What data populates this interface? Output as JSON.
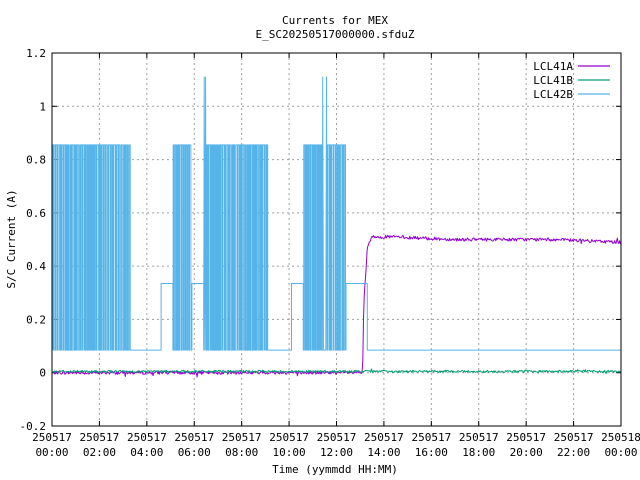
{
  "chart_data": {
    "type": "line",
    "title": "Currents for MEX",
    "subtitle": "E_SC20250517000000.sfduZ",
    "xlabel": "Time (yymmdd HH:MM)",
    "ylabel": "S/C Current (A)",
    "xlim": [
      "2025-05-17 00:00",
      "2025-05-18 00:00"
    ],
    "ylim": [
      -0.2,
      1.2
    ],
    "grid": true,
    "legend_position": "top-right",
    "x_ticks": [
      {
        "date": "250517",
        "time": "00:00"
      },
      {
        "date": "250517",
        "time": "02:00"
      },
      {
        "date": "250517",
        "time": "04:00"
      },
      {
        "date": "250517",
        "time": "06:00"
      },
      {
        "date": "250517",
        "time": "08:00"
      },
      {
        "date": "250517",
        "time": "10:00"
      },
      {
        "date": "250517",
        "time": "12:00"
      },
      {
        "date": "250517",
        "time": "14:00"
      },
      {
        "date": "250517",
        "time": "16:00"
      },
      {
        "date": "250517",
        "time": "18:00"
      },
      {
        "date": "250517",
        "time": "20:00"
      },
      {
        "date": "250517",
        "time": "22:00"
      },
      {
        "date": "250518",
        "time": "00:00"
      }
    ],
    "y_ticks": [
      "-0.2",
      "0",
      "0.2",
      "0.4",
      "0.6",
      "0.8",
      "1",
      "1.2"
    ],
    "series": [
      {
        "name": "LCL41A",
        "color": "#9400d3",
        "style": "noisy",
        "noise": 0.006,
        "points": [
          [
            0,
            0.0
          ],
          [
            13.1,
            0.0
          ],
          [
            13.15,
            0.25
          ],
          [
            13.3,
            0.47
          ],
          [
            13.5,
            0.51
          ],
          [
            14.5,
            0.51
          ],
          [
            15.5,
            0.505
          ],
          [
            17,
            0.5
          ],
          [
            19,
            0.5
          ],
          [
            21,
            0.5
          ],
          [
            22.5,
            0.495
          ],
          [
            24,
            0.49
          ]
        ]
      },
      {
        "name": "LCL41B",
        "color": "#009e73",
        "style": "noisy",
        "noise": 0.004,
        "points": [
          [
            0,
            0.005
          ],
          [
            24,
            0.005
          ]
        ]
      },
      {
        "name": "LCL42B",
        "color": "#56b4e9",
        "style": "switching",
        "low": 0.085,
        "high": 0.855,
        "segments": [
          {
            "from": 0.0,
            "to": 3.3,
            "mode": "toggle"
          },
          {
            "from": 3.3,
            "to": 4.6,
            "mode": "flat",
            "value": 0.085
          },
          {
            "from": 4.6,
            "to": 5.1,
            "mode": "flat",
            "value": 0.335
          },
          {
            "from": 5.1,
            "to": 5.9,
            "mode": "toggle"
          },
          {
            "from": 5.9,
            "to": 6.4,
            "mode": "flat",
            "value": 0.335
          },
          {
            "from": 6.4,
            "to": 6.5,
            "mode": "spike",
            "value": 1.11
          },
          {
            "from": 6.5,
            "to": 9.1,
            "mode": "toggle"
          },
          {
            "from": 9.1,
            "to": 10.1,
            "mode": "flat",
            "value": 0.085
          },
          {
            "from": 10.1,
            "to": 10.6,
            "mode": "flat",
            "value": 0.335
          },
          {
            "from": 10.6,
            "to": 11.4,
            "mode": "toggle"
          },
          {
            "from": 11.4,
            "to": 11.6,
            "mode": "spike",
            "value": 1.11
          },
          {
            "from": 11.6,
            "to": 12.4,
            "mode": "toggle"
          },
          {
            "from": 12.4,
            "to": 13.3,
            "mode": "flat",
            "value": 0.335
          },
          {
            "from": 13.3,
            "to": 24.0,
            "mode": "flat",
            "value": 0.085
          }
        ]
      }
    ]
  }
}
